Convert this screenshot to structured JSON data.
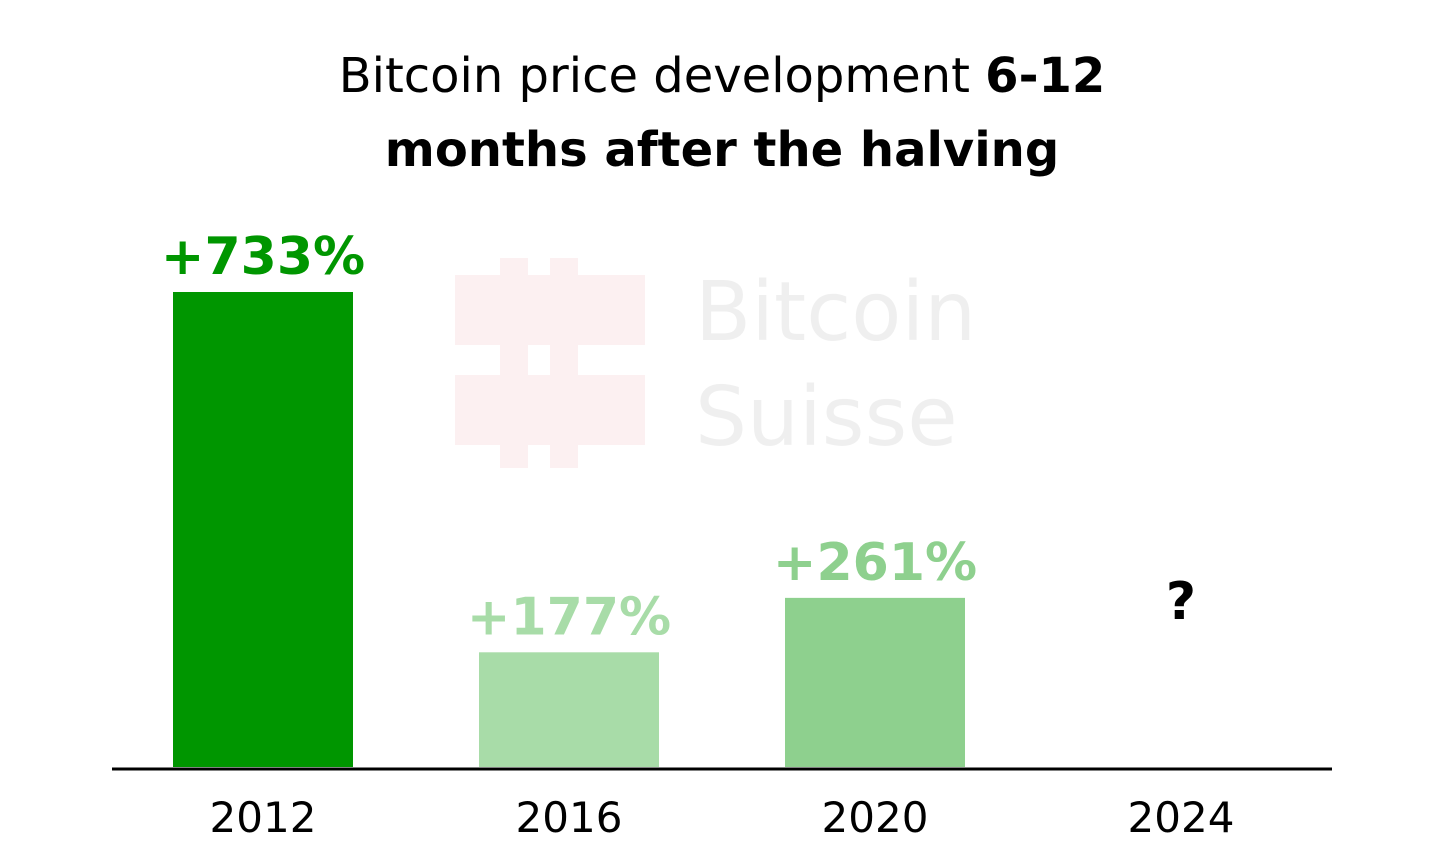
{
  "chart_data": {
    "type": "bar",
    "title_lines": [
      "Bitcoin price development",
      "6-12",
      "months after the halving"
    ],
    "watermark_lines": [
      "Bitcoin",
      "Suisse"
    ],
    "categories": [
      "2012",
      "2016",
      "2020",
      "2024"
    ],
    "values": [
      733,
      177,
      261,
      null
    ],
    "value_labels": [
      "+733%",
      "+177%",
      "+261%",
      "?"
    ],
    "colors": [
      "#009600",
      "#a8dca8",
      "#8ed08e",
      "#000000"
    ]
  }
}
